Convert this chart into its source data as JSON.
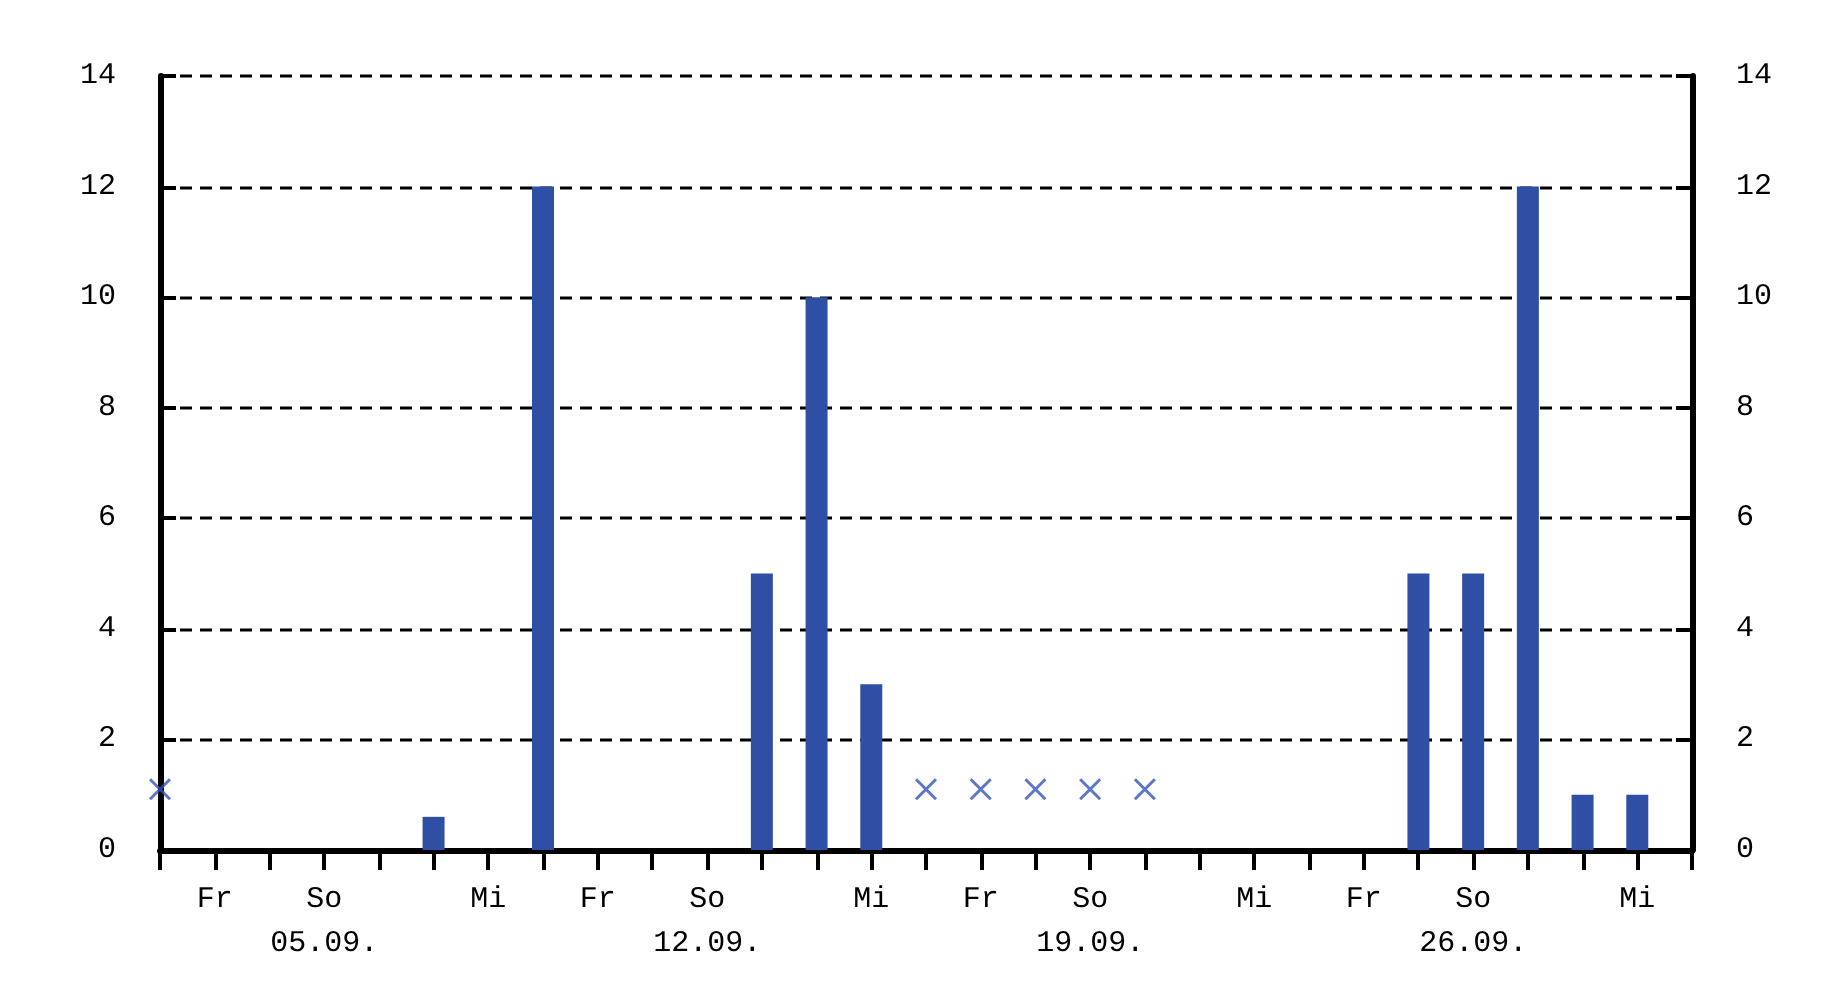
{
  "chart_data": {
    "type": "bar",
    "categories": [
      null,
      "Fr",
      null,
      "So\n05.09.",
      null,
      null,
      "Mi",
      null,
      "Fr",
      null,
      "So\n12.09.",
      null,
      null,
      "Mi",
      null,
      "Fr",
      null,
      "So\n19.09.",
      null,
      null,
      "Mi",
      null,
      "Fr",
      null,
      "So\n26.09.",
      null,
      null,
      "Mi",
      null
    ],
    "series": [
      {
        "color": "#2e4fa3",
        "values": [
          null,
          0,
          0,
          0,
          0,
          0.6,
          0,
          12,
          0,
          0,
          0,
          5,
          10,
          3,
          null,
          null,
          null,
          null,
          null,
          0,
          0,
          0,
          0,
          5,
          5,
          12,
          1,
          1,
          0
        ]
      },
      {
        "type": "scatter",
        "marker": "cross",
        "color": "#3355bb",
        "values": [
          1.1,
          null,
          null,
          null,
          null,
          null,
          null,
          null,
          null,
          null,
          null,
          null,
          null,
          null,
          1.1,
          1.1,
          1.1,
          1.1,
          1.1,
          null,
          null,
          null,
          null,
          null,
          null,
          null,
          null,
          null,
          null
        ]
      }
    ],
    "ylim": [
      0,
      14
    ],
    "yticks": [
      0,
      2,
      4,
      6,
      8,
      10,
      12,
      14
    ],
    "y2lim": [
      0,
      14
    ],
    "y2ticks": [
      0,
      2,
      4,
      6,
      8,
      10,
      12,
      14
    ],
    "grid": "y"
  }
}
